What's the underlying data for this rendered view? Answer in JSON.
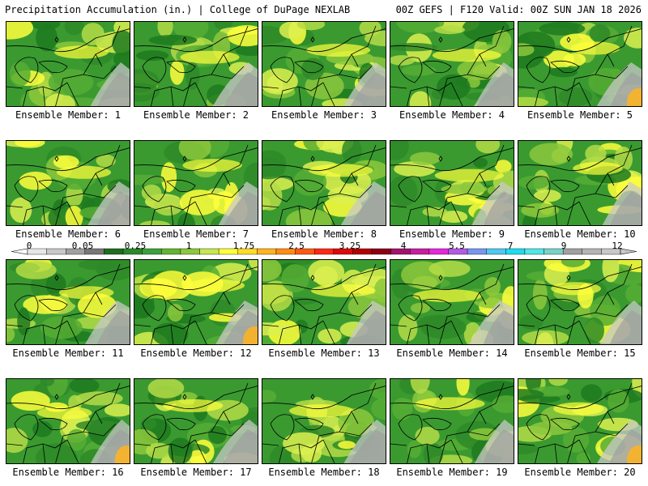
{
  "header": {
    "title_left": "Precipitation Accumulation (in.) | College of DuPage NEXLAB",
    "title_right": "00Z GEFS | F120 Valid: 00Z SUN JAN 18 2026"
  },
  "panels": [
    {
      "label": "Ensemble Member: 1"
    },
    {
      "label": "Ensemble Member: 2"
    },
    {
      "label": "Ensemble Member: 3"
    },
    {
      "label": "Ensemble Member: 4"
    },
    {
      "label": "Ensemble Member: 5"
    },
    {
      "label": "Ensemble Member: 6"
    },
    {
      "label": "Ensemble Member: 7"
    },
    {
      "label": "Ensemble Member: 8"
    },
    {
      "label": "Ensemble Member: 9"
    },
    {
      "label": "Ensemble Member: 10"
    },
    {
      "label": "Ensemble Member: 11"
    },
    {
      "label": "Ensemble Member: 12"
    },
    {
      "label": "Ensemble Member: 13"
    },
    {
      "label": "Ensemble Member: 14"
    },
    {
      "label": "Ensemble Member: 15"
    },
    {
      "label": "Ensemble Member: 16"
    },
    {
      "label": "Ensemble Member: 17"
    },
    {
      "label": "Ensemble Member: 18"
    },
    {
      "label": "Ensemble Member: 19"
    },
    {
      "label": "Ensemble Member: 20"
    }
  ],
  "colorbar": {
    "labels": [
      "0",
      "0.05",
      "0.25",
      "1",
      "1.75",
      "2.5",
      "3.25",
      "4",
      "5.5",
      "7",
      "9",
      "12"
    ],
    "colors": [
      "#e6e6e6",
      "#c8c8c8",
      "#a0a0a0",
      "#787878",
      "#1e6e1e",
      "#2a8a2a",
      "#3ca03c",
      "#64b432",
      "#8cc83c",
      "#c8e650",
      "#ffff3c",
      "#ffdc28",
      "#ffb41e",
      "#ff8c14",
      "#ff5a14",
      "#ff2814",
      "#dc0a0a",
      "#b40000",
      "#8c0014",
      "#a0146e",
      "#c81ea0",
      "#e628dc",
      "#b45ae6",
      "#7896f0",
      "#50c8f0",
      "#1edcf0",
      "#50e6e6",
      "#78d2c8",
      "#a0a0a0",
      "#b4b4b4",
      "#c8c8c8"
    ]
  }
}
